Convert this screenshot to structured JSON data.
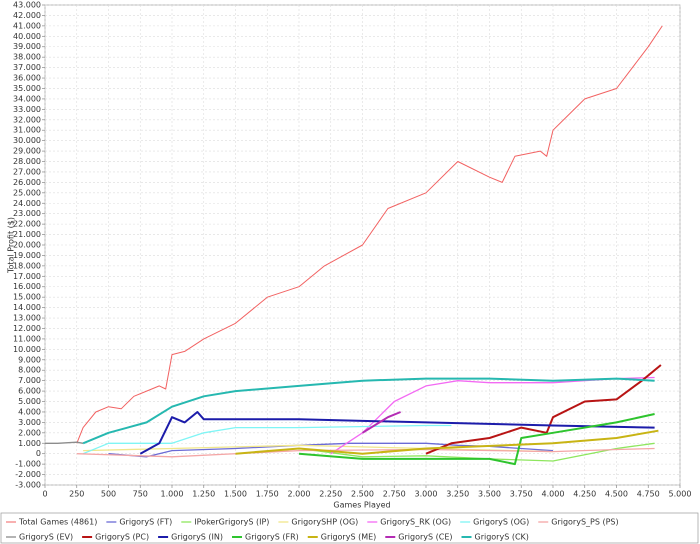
{
  "chart_data": {
    "type": "line",
    "x_label": "Games Played",
    "y_label": "Total Profit ($)",
    "grid": true,
    "legend": "bottom",
    "xlim": [
      0,
      5000
    ],
    "ylim": [
      -3,
      43
    ],
    "xticks": [
      0,
      250,
      500,
      750,
      {
        "value": 1000,
        "label": "1.000"
      },
      {
        "value": 1250,
        "label": "1.250"
      },
      {
        "value": 1500,
        "label": "1.500"
      },
      {
        "value": 1750,
        "label": "1.750"
      },
      {
        "value": 2000,
        "label": "2.000"
      },
      {
        "value": 2250,
        "label": "2.250"
      },
      {
        "value": 2500,
        "label": "2.500"
      },
      {
        "value": 2750,
        "label": "2.750"
      },
      {
        "value": 3000,
        "label": "3.000"
      },
      {
        "value": 3250,
        "label": "3.250"
      },
      {
        "value": 3500,
        "label": "3.500"
      },
      {
        "value": 3750,
        "label": "3.750"
      },
      {
        "value": 4000,
        "label": "4.000"
      },
      {
        "value": 4250,
        "label": "4.250"
      },
      {
        "value": 4500,
        "label": "4.500"
      },
      {
        "value": 4750,
        "label": "4.750"
      },
      {
        "value": 5000,
        "label": "5.000"
      }
    ],
    "yticks": [
      {
        "value": -3,
        "label": "-3.000"
      },
      {
        "value": -2,
        "label": "-2.000"
      },
      {
        "value": -1,
        "label": "-1.000"
      },
      0,
      {
        "value": 1,
        "label": "1.000"
      },
      {
        "value": 2,
        "label": "2.000"
      },
      {
        "value": 3,
        "label": "3.000"
      },
      {
        "value": 4,
        "label": "4.000"
      },
      {
        "value": 5,
        "label": "5.000"
      },
      {
        "value": 6,
        "label": "6.000"
      },
      {
        "value": 7,
        "label": "7.000"
      },
      {
        "value": 8,
        "label": "8.000"
      },
      {
        "value": 9,
        "label": "9.000"
      },
      {
        "value": 10,
        "label": "10.000"
      },
      {
        "value": 11,
        "label": "11.000"
      },
      {
        "value": 12,
        "label": "12.000"
      },
      {
        "value": 13,
        "label": "13.000"
      },
      {
        "value": 14,
        "label": "14.000"
      },
      {
        "value": 15,
        "label": "15.000"
      },
      {
        "value": 16,
        "label": "16.000"
      },
      {
        "value": 17,
        "label": "17.000"
      },
      {
        "value": 18,
        "label": "18.000"
      },
      {
        "value": 19,
        "label": "19.000"
      },
      {
        "value": 20,
        "label": "20.000"
      },
      {
        "value": 21,
        "label": "21.000"
      },
      {
        "value": 22,
        "label": "22.000"
      },
      {
        "value": 23,
        "label": "23.000"
      },
      {
        "value": 24,
        "label": "24.000"
      },
      {
        "value": 25,
        "label": "25.000"
      },
      {
        "value": 26,
        "label": "26.000"
      },
      {
        "value": 27,
        "label": "27.000"
      },
      {
        "value": 28,
        "label": "28.000"
      },
      {
        "value": 29,
        "label": "29.000"
      },
      {
        "value": 30,
        "label": "30.000"
      },
      {
        "value": 31,
        "label": "31.000"
      },
      {
        "value": 32,
        "label": "32.000"
      },
      {
        "value": 33,
        "label": "33.000"
      },
      {
        "value": 34,
        "label": "34.000"
      },
      {
        "value": 35,
        "label": "35.000"
      },
      {
        "value": 36,
        "label": "36.000"
      },
      {
        "value": 37,
        "label": "37.000"
      },
      {
        "value": 38,
        "label": "38.000"
      },
      {
        "value": 39,
        "label": "39.000"
      },
      {
        "value": 40,
        "label": "40.000"
      },
      {
        "value": 41,
        "label": "41.000"
      },
      {
        "value": 42,
        "label": "42.000"
      },
      {
        "value": 43,
        "label": "43.000"
      }
    ],
    "series": [
      {
        "name": "Total Games (4861)",
        "color": "#f26262",
        "width": 1,
        "x": [
          250,
          300,
          400,
          500,
          600,
          700,
          800,
          900,
          950,
          1000,
          1100,
          1250,
          1500,
          1750,
          2000,
          2200,
          2500,
          2700,
          3000,
          3250,
          3500,
          3600,
          3700,
          3900,
          3950,
          4000,
          4250,
          4500,
          4750,
          4861
        ],
        "values": [
          1,
          2.5,
          4,
          4.5,
          4.3,
          5.5,
          6,
          6.5,
          6.2,
          9.5,
          9.8,
          11,
          12.5,
          15,
          16,
          18,
          20,
          23.5,
          25,
          28,
          26.5,
          26,
          28.5,
          29,
          28.5,
          31,
          34,
          35,
          39,
          41
        ]
      },
      {
        "name": "GrigoryS (FT)",
        "color": "#6b6bd6",
        "width": 1.3,
        "x": [
          500,
          800,
          1000,
          1500,
          2000,
          2400,
          3000,
          3250,
          3500,
          4000
        ],
        "values": [
          0,
          -0.3,
          0.3,
          0.5,
          0.8,
          1,
          1,
          0.8,
          0.7,
          0.3
        ]
      },
      {
        "name": "IPokerGrigoryS (IP)",
        "color": "#8ee65e",
        "width": 1.3,
        "x": [
          2000,
          2500,
          3000,
          3500,
          4000,
          4500,
          4800
        ],
        "values": [
          0.5,
          -0.3,
          -0.2,
          -0.5,
          -0.7,
          0.5,
          1
        ]
      },
      {
        "name": "GrigorySΗP (OG)",
        "color": "#f0e68c",
        "width": 1.3,
        "x": [
          300,
          1000,
          2000,
          3000,
          4000
        ],
        "values": [
          0.3,
          0.5,
          0.8,
          0.5,
          0.2
        ]
      },
      {
        "name": "GrigoryS_RK (OG)",
        "color": "#f36af3",
        "width": 1.3,
        "x": [
          2250,
          2500,
          2750,
          3000,
          3250,
          3500,
          4000,
          4500,
          4800
        ],
        "values": [
          0,
          2,
          5,
          6.5,
          7,
          6.8,
          6.8,
          7.2,
          7.3
        ]
      },
      {
        "name": "GrigoryS (OG)",
        "color": "#7ff5f5",
        "width": 1.3,
        "x": [
          300,
          500,
          1000,
          1250,
          1500,
          2000,
          3000,
          3200
        ],
        "values": [
          0,
          1,
          1,
          2,
          2.5,
          2.5,
          2.7,
          2.7
        ]
      },
      {
        "name": "GrigoryS_PS (PS)",
        "color": "#f4a6a6",
        "width": 1.3,
        "x": [
          250,
          1000,
          2000,
          3000,
          4000,
          4500,
          4800
        ],
        "values": [
          0,
          -0.3,
          0.3,
          0.4,
          0.2,
          0.4,
          0.5
        ]
      },
      {
        "name": "GrigoryS (EV)",
        "color": "#8c8c8c",
        "width": 1.3,
        "x": [
          0,
          100,
          250,
          300
        ],
        "values": [
          1,
          1,
          1.1,
          1
        ]
      },
      {
        "name": "GrigoryS (PC)",
        "color": "#b81414",
        "width": 2,
        "x": [
          3000,
          3200,
          3500,
          3750,
          3950,
          4000,
          4250,
          4500,
          4700,
          4850
        ],
        "values": [
          0,
          1,
          1.5,
          2.5,
          2,
          3.5,
          5,
          5.2,
          7,
          8.5
        ]
      },
      {
        "name": "GrigoryS (IN)",
        "color": "#1c1caa",
        "width": 2,
        "x": [
          750,
          900,
          1000,
          1100,
          1200,
          1250,
          2000,
          3000,
          4000,
          4800
        ],
        "values": [
          0,
          1,
          3.5,
          3,
          4,
          3.3,
          3.3,
          3,
          2.7,
          2.5
        ]
      },
      {
        "name": "GrigoryS (FR)",
        "color": "#2ec42e",
        "width": 2,
        "x": [
          2000,
          2500,
          3500,
          3700,
          3750,
          4000,
          4500,
          4800
        ],
        "values": [
          0,
          -0.5,
          -0.5,
          -1,
          1.5,
          2,
          3,
          3.8
        ]
      },
      {
        "name": "GrigoryS (ME)",
        "color": "#c8b414",
        "width": 2,
        "x": [
          1500,
          2000,
          2500,
          3000,
          4000,
          4500,
          4830
        ],
        "values": [
          0,
          0.5,
          0,
          0.5,
          1,
          1.5,
          2.2
        ]
      },
      {
        "name": "GrigoryS (CE)",
        "color": "#b42cb4",
        "width": 2,
        "x": [
          2500,
          2700,
          2800
        ],
        "values": [
          2,
          3.5,
          4
        ]
      },
      {
        "name": "GrigoryS (CK)",
        "color": "#26b8b0",
        "width": 2,
        "x": [
          300,
          500,
          800,
          1000,
          1250,
          1500,
          2000,
          2500,
          3000,
          3500,
          4000,
          4500,
          4800
        ],
        "values": [
          1,
          2,
          3,
          4.5,
          5.5,
          6,
          6.5,
          7,
          7.2,
          7.2,
          7,
          7.2,
          7
        ]
      }
    ]
  }
}
